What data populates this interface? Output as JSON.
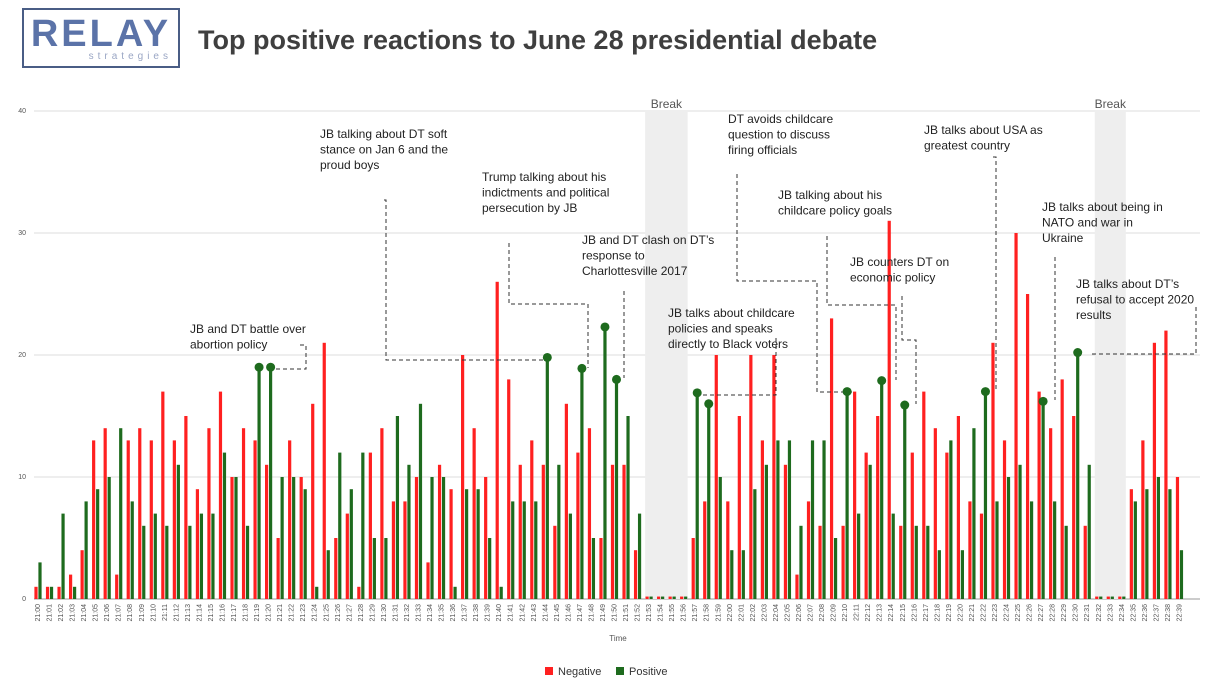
{
  "header": {
    "logo_main": "RELAY",
    "logo_sub": "strategies",
    "title": "Top positive reactions to June 28 presidential debate"
  },
  "chart_data": {
    "type": "bar",
    "xlabel": "Time",
    "ylim": [
      0,
      40
    ],
    "yticks": [
      0,
      10,
      20,
      30,
      40
    ],
    "grid": true,
    "legend_position": "bottom",
    "categories": [
      "21:00",
      "21:01",
      "21:02",
      "21:03",
      "21:04",
      "21:05",
      "21:06",
      "21:07",
      "21:08",
      "21:09",
      "21:10",
      "21:11",
      "21:12",
      "21:13",
      "21:14",
      "21:15",
      "21:16",
      "21:17",
      "21:18",
      "21:19",
      "21:20",
      "21:21",
      "21:22",
      "21:23",
      "21:24",
      "21:25",
      "21:26",
      "21:27",
      "21:28",
      "21:29",
      "21:30",
      "21:31",
      "21:32",
      "21:33",
      "21:34",
      "21:35",
      "21:36",
      "21:37",
      "21:38",
      "21:39",
      "21:40",
      "21:41",
      "21:42",
      "21:43",
      "21:44",
      "21:45",
      "21:46",
      "21:47",
      "21:48",
      "21:49",
      "21:50",
      "21:51",
      "21:52",
      "21:53",
      "21:54",
      "21:55",
      "21:56",
      "21:57",
      "21:58",
      "21:59",
      "22:00",
      "22:01",
      "22:02",
      "22:03",
      "22:04",
      "22:05",
      "22:06",
      "22:07",
      "22:08",
      "22:09",
      "22:10",
      "22:11",
      "22:12",
      "22:13",
      "22:14",
      "22:15",
      "22:16",
      "22:17",
      "22:18",
      "22:19",
      "22:20",
      "22:21",
      "22:22",
      "22:23",
      "22:24",
      "22:25",
      "22:26",
      "22:27",
      "22:28",
      "22:29",
      "22:30",
      "22:31",
      "22:32",
      "22:33",
      "22:34",
      "22:35",
      "22:36",
      "22:37",
      "22:38",
      "22:39"
    ],
    "series": [
      {
        "name": "Negative",
        "color": "#ff2020",
        "values": [
          1,
          1,
          1,
          2,
          4,
          13,
          14,
          2,
          13,
          14,
          13,
          17,
          13,
          15,
          9,
          14,
          17,
          10,
          14,
          13,
          11,
          5,
          13,
          10,
          16,
          21,
          5,
          7,
          1,
          12,
          14,
          8,
          8,
          10,
          3,
          11,
          9,
          20,
          14,
          10,
          26,
          18,
          11,
          13,
          11,
          6,
          16,
          12,
          14,
          5,
          11,
          11,
          4,
          0.2,
          0.2,
          0.2,
          0.2,
          5,
          8,
          20,
          8,
          15,
          20,
          13,
          20,
          11,
          2,
          8,
          6,
          23,
          6,
          17,
          12,
          15,
          31,
          6,
          12,
          17,
          14,
          12,
          15,
          8,
          7,
          21,
          13,
          30,
          25,
          17,
          14,
          18,
          15,
          6,
          0.2,
          0.2,
          0.2,
          9,
          13,
          21,
          22,
          10
        ]
      },
      {
        "name": "Positive",
        "color": "#1e6b1e",
        "values": [
          3,
          1,
          7,
          1,
          8,
          9,
          10,
          14,
          8,
          6,
          7,
          6,
          11,
          6,
          7,
          7,
          12,
          10,
          6,
          19,
          19,
          10,
          10,
          9,
          1,
          4,
          12,
          9,
          12,
          5,
          5,
          15,
          11,
          16,
          10,
          10,
          1,
          9,
          9,
          5,
          1,
          8,
          8,
          8,
          20,
          11,
          7,
          19,
          5,
          22,
          18,
          15,
          7,
          0.2,
          0.2,
          0.2,
          0.2,
          17,
          16,
          10,
          4,
          4,
          9,
          11,
          13,
          13,
          6,
          13,
          13,
          5,
          17,
          7,
          11,
          18,
          7,
          16,
          6,
          6,
          4,
          13,
          4,
          14,
          17,
          8,
          10,
          11,
          8,
          16,
          8,
          6,
          20,
          11,
          0.2,
          0.2,
          0.2,
          8,
          9,
          10,
          9,
          4
        ]
      }
    ],
    "markers": [
      {
        "series": "Positive",
        "category": "21:19",
        "value": 19
      },
      {
        "series": "Positive",
        "category": "21:20",
        "value": 19
      },
      {
        "series": "Positive",
        "category": "21:44",
        "value": 19.8
      },
      {
        "series": "Positive",
        "category": "21:47",
        "value": 18.9
      },
      {
        "series": "Positive",
        "category": "21:49",
        "value": 22.3
      },
      {
        "series": "Positive",
        "category": "21:50",
        "value": 18
      },
      {
        "series": "Positive",
        "category": "21:57",
        "value": 16.9
      },
      {
        "series": "Positive",
        "category": "21:58",
        "value": 16
      },
      {
        "series": "Positive",
        "category": "22:10",
        "value": 17
      },
      {
        "series": "Positive",
        "category": "22:13",
        "value": 17.9
      },
      {
        "series": "Positive",
        "category": "22:15",
        "value": 15.9
      },
      {
        "series": "Positive",
        "category": "22:22",
        "value": 17
      },
      {
        "series": "Positive",
        "category": "22:27",
        "value": 16.2
      },
      {
        "series": "Positive",
        "category": "22:30",
        "value": 20.2
      }
    ],
    "breaks": [
      {
        "label": "Break",
        "from": "21:53",
        "to": "21:56"
      },
      {
        "label": "Break",
        "from": "22:32",
        "to": "22:34"
      }
    ],
    "annotations": [
      {
        "text": [
          "JB and DT battle over",
          "abortion policy"
        ]
      },
      {
        "text": [
          "JB talking about DT soft",
          "stance on Jan 6 and the",
          "proud boys"
        ]
      },
      {
        "text": [
          "Trump talking about his",
          "indictments and political",
          "persecution by JB"
        ]
      },
      {
        "text": [
          "JB and DT clash on DT’s",
          "response to",
          "Charlottesville 2017"
        ]
      },
      {
        "text": [
          "JB talks about childcare",
          "policies and speaks",
          "directly to Black voters"
        ]
      },
      {
        "text": [
          "DT avoids childcare",
          "question to discuss",
          "firing officials"
        ]
      },
      {
        "text": [
          "JB talking about his",
          "childcare policy goals"
        ]
      },
      {
        "text": [
          "JB counters DT on",
          "economic policy"
        ]
      },
      {
        "text": [
          "JB talks about USA as",
          "greatest country"
        ]
      },
      {
        "text": [
          "JB talks about being in",
          "NATO and war in",
          "Ukraine"
        ]
      },
      {
        "text": [
          "JB talks about DT’s",
          "refusal to accept 2020",
          "results"
        ]
      }
    ]
  }
}
